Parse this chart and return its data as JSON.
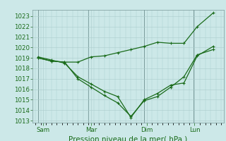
{
  "title": "",
  "xlabel": "Pression niveau de la mer( hPa )",
  "background_color": "#cce8e8",
  "grid_color": "#aacccc",
  "line_color": "#1a6b1a",
  "vline_color": "#7a9a9a",
  "ylim": [
    1012.8,
    1023.6
  ],
  "yticks": [
    1013,
    1014,
    1015,
    1016,
    1017,
    1018,
    1019,
    1020,
    1021,
    1022,
    1023
  ],
  "xlim": [
    -0.05,
    3.55
  ],
  "xtick_positions": [
    0.15,
    1.05,
    2.1,
    3.0
  ],
  "xtick_labels": [
    "Sam",
    "Mar",
    "Dim",
    "Lun"
  ],
  "vline_positions": [
    0.05,
    1.0,
    2.05,
    2.98
  ],
  "series1_x": [
    0.05,
    0.3,
    0.55,
    0.8,
    1.05,
    1.3,
    1.55,
    1.8,
    2.05,
    2.3,
    2.55,
    2.8,
    3.05,
    3.35
  ],
  "series1_y": [
    1019.0,
    1018.7,
    1018.6,
    1018.6,
    1019.1,
    1019.2,
    1019.5,
    1019.8,
    1020.1,
    1020.5,
    1020.4,
    1020.4,
    1022.0,
    1023.3
  ],
  "series2_x": [
    0.05,
    0.3,
    0.55,
    0.8,
    1.05,
    1.3,
    1.55,
    1.8,
    2.05,
    2.3,
    2.55,
    2.8,
    3.05,
    3.35
  ],
  "series2_y": [
    1019.1,
    1018.8,
    1018.5,
    1017.2,
    1016.5,
    1015.8,
    1015.3,
    1013.3,
    1015.0,
    1015.6,
    1016.4,
    1016.6,
    1019.2,
    1020.1
  ],
  "series3_x": [
    0.05,
    0.3,
    0.55,
    0.8,
    1.05,
    1.3,
    1.55,
    1.8,
    2.05,
    2.3,
    2.55,
    2.8,
    3.05,
    3.35
  ],
  "series3_y": [
    1019.0,
    1018.7,
    1018.6,
    1017.0,
    1016.2,
    1015.4,
    1014.7,
    1013.4,
    1014.9,
    1015.3,
    1016.2,
    1017.2,
    1019.3,
    1019.8
  ],
  "marker": "+",
  "markersize": 3.5,
  "linewidth": 0.9,
  "xlabel_fontsize": 7.5,
  "tick_labelsize": 6.2
}
